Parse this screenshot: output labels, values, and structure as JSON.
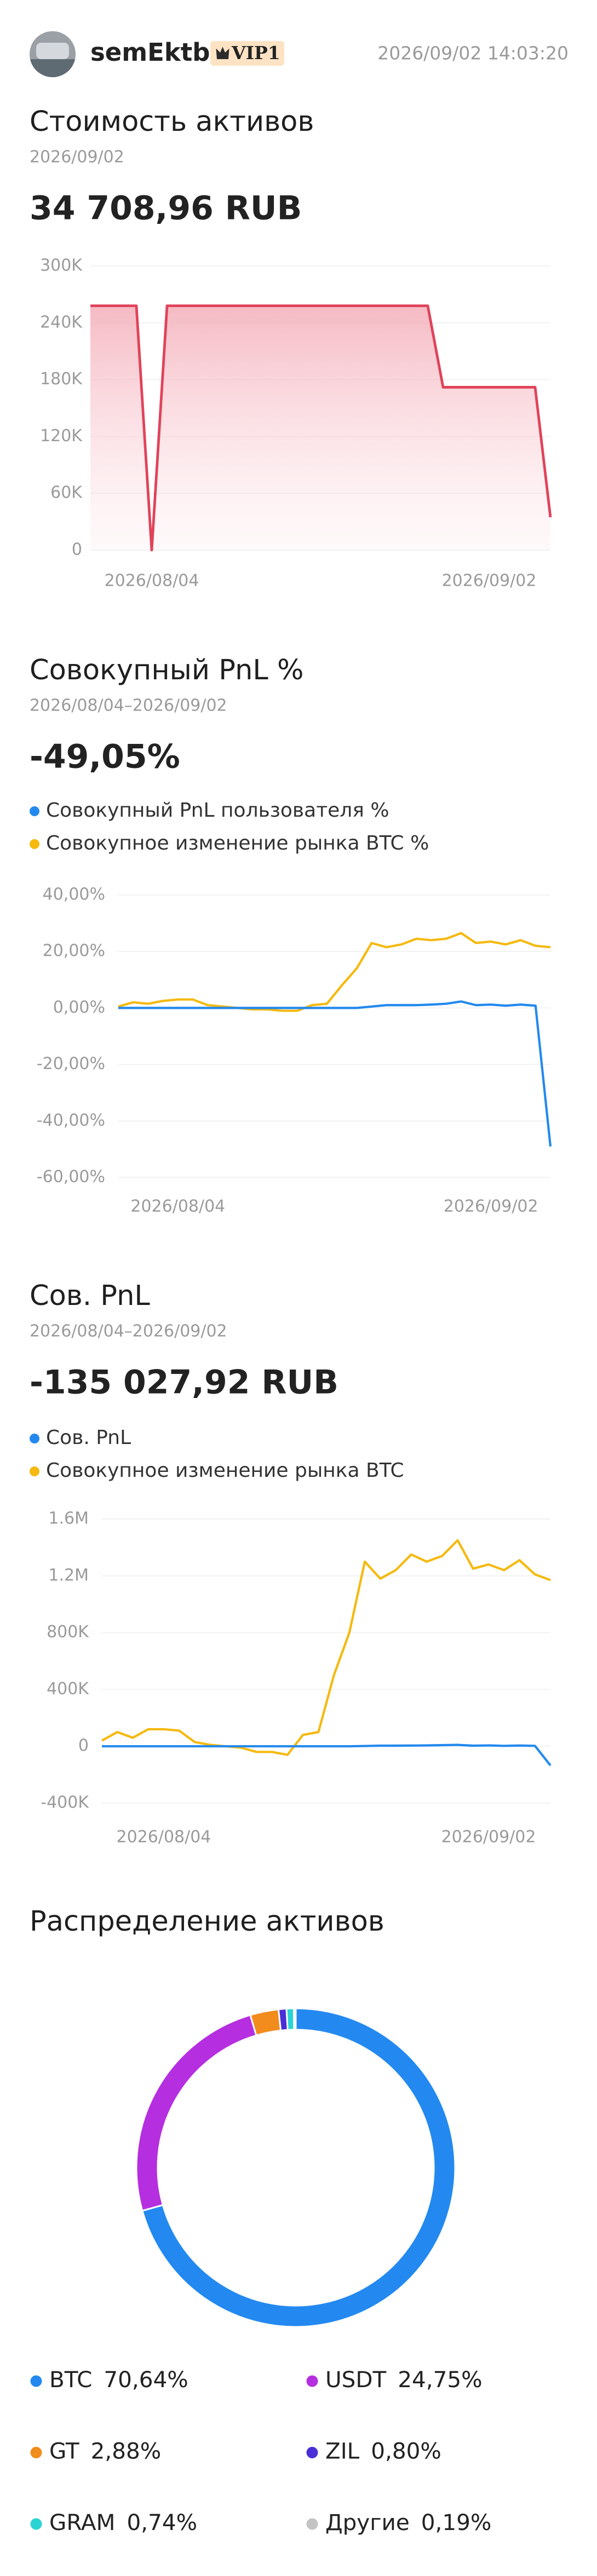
{
  "header": {
    "username": "semEktb",
    "badge": "VIP1",
    "timestamp": "2026/09/02 14:03:20"
  },
  "chart_data": [
    {
      "type": "area",
      "title": "Стоимость активов",
      "subtitle": "2026/09/02",
      "total": "34 708,96 RUB",
      "total_color": "#16b36c",
      "categories": [
        null,
        null,
        null,
        null,
        "2026/08/04",
        null,
        null,
        null,
        null,
        null,
        null,
        null,
        null,
        null,
        null,
        null,
        null,
        null,
        null,
        null,
        null,
        null,
        null,
        null,
        null,
        null,
        "2026/09/02",
        null,
        null,
        null,
        null
      ],
      "series": [
        {
          "name": "Стоимость активов",
          "color": "#e0435a",
          "values": [
            258000,
            258000,
            258000,
            258000,
            0,
            258000,
            258000,
            258000,
            258000,
            258000,
            258000,
            258000,
            258000,
            258000,
            258000,
            258000,
            258000,
            258000,
            258000,
            258000,
            258000,
            258000,
            258000,
            172000,
            172000,
            172000,
            172000,
            172000,
            172000,
            172000,
            34709
          ]
        }
      ],
      "ylim": [
        0,
        300000
      ],
      "yticks": [
        0,
        {
          "value": 60000,
          "label": "60K"
        },
        {
          "value": 120000,
          "label": "120K"
        },
        {
          "value": 180000,
          "label": "180K"
        },
        {
          "value": 240000,
          "label": "240K"
        },
        {
          "value": 300000,
          "label": "300K"
        }
      ],
      "grid": true,
      "legend": false
    },
    {
      "type": "line",
      "title": "Совокупный PnL %",
      "subtitle": "2026/08/04–2026/09/02",
      "total": "-49,05%",
      "total_color": "#e8355a",
      "categories": [
        null,
        null,
        null,
        null,
        "2026/08/04",
        null,
        null,
        null,
        null,
        null,
        null,
        null,
        null,
        null,
        null,
        null,
        null,
        null,
        null,
        null,
        null,
        null,
        null,
        null,
        null,
        "2026/09/02",
        null,
        null,
        null,
        null
      ],
      "series": [
        {
          "name": "Совокупный PnL пользователя %",
          "color": "#2389ee",
          "values": [
            0,
            0,
            0,
            0,
            0,
            0,
            0,
            0,
            0,
            0,
            0,
            0,
            0,
            0,
            0,
            0,
            0,
            0.5,
            1,
            1,
            1,
            1.2,
            1.5,
            2.3,
            1,
            1.2,
            0.8,
            1.2,
            0.8,
            -49.05
          ]
        },
        {
          "name": "Совокупное изменение рынка BTC %",
          "color": "#f5b90f",
          "values": [
            0.5,
            2,
            1.5,
            2.5,
            3,
            3,
            1,
            0.5,
            0,
            -0.5,
            -0.5,
            -1,
            -1,
            1,
            1.5,
            8,
            14,
            23,
            21.5,
            22.5,
            24.5,
            24,
            24.5,
            26.5,
            23,
            23.5,
            22.5,
            24,
            22,
            21.5
          ]
        }
      ],
      "ylim": [
        -60,
        40
      ],
      "yticks": [
        {
          "value": -60,
          "label": "-60,00%"
        },
        {
          "value": -40,
          "label": "-40,00%"
        },
        {
          "value": -20,
          "label": "-20,00%"
        },
        {
          "value": 0,
          "label": "0,00%"
        },
        {
          "value": 20,
          "label": "20,00%"
        },
        {
          "value": 40,
          "label": "40,00%"
        }
      ],
      "grid": true,
      "legend": "top-left"
    },
    {
      "type": "line",
      "title": "Сов. PnL",
      "subtitle": "2026/08/04–2026/09/02",
      "total": "-135 027,92 RUB",
      "total_color": "#e8355a",
      "categories": [
        null,
        null,
        null,
        null,
        "2026/08/04",
        null,
        null,
        null,
        null,
        null,
        null,
        null,
        null,
        null,
        null,
        null,
        null,
        null,
        null,
        null,
        null,
        null,
        null,
        null,
        null,
        "2026/09/02",
        null,
        null,
        null,
        null
      ],
      "series": [
        {
          "name": "Сов. PnL",
          "color": "#2389ee",
          "values": [
            0,
            0,
            0,
            0,
            0,
            0,
            0,
            0,
            0,
            0,
            0,
            0,
            0,
            0,
            0,
            0,
            0,
            2000,
            4000,
            4000,
            5000,
            6000,
            8000,
            10000,
            4000,
            6000,
            3000,
            5000,
            3000,
            -135028
          ]
        },
        {
          "name": "Совокупное изменение рынка BTC",
          "color": "#f5b90f",
          "values": [
            40000,
            100000,
            60000,
            120000,
            120000,
            110000,
            30000,
            10000,
            0,
            -10000,
            -40000,
            -40000,
            -60000,
            80000,
            100000,
            500000,
            800000,
            1300000,
            1180000,
            1240000,
            1350000,
            1300000,
            1340000,
            1450000,
            1250000,
            1280000,
            1240000,
            1310000,
            1210000,
            1170000
          ]
        }
      ],
      "ylim": [
        -400000,
        1600000
      ],
      "yticks": [
        {
          "value": -400000,
          "label": "-400K"
        },
        0,
        {
          "value": 400000,
          "label": "400K"
        },
        {
          "value": 800000,
          "label": "800K"
        },
        {
          "value": 1200000,
          "label": "1.2M"
        },
        {
          "value": 1600000,
          "label": "1.6M"
        }
      ],
      "grid": true,
      "legend": "top-left"
    },
    {
      "type": "donut",
      "title": "Распределение активов",
      "categories": [
        "BTC",
        "USDT",
        "GT",
        "ZIL",
        "GRAM",
        "Другие"
      ],
      "values": [
        70.64,
        24.75,
        2.88,
        0.8,
        0.74,
        0.19
      ],
      "value_labels": [
        "70,64%",
        "24,75%",
        "2,88%",
        "0,80%",
        "0,74%",
        "0,19%"
      ],
      "colors": [
        "#2389f0",
        "#b52ee0",
        "#f28c1c",
        "#4b2fd6",
        "#2ad4d4",
        "#c4c4c4"
      ],
      "legend": "bottom"
    }
  ]
}
